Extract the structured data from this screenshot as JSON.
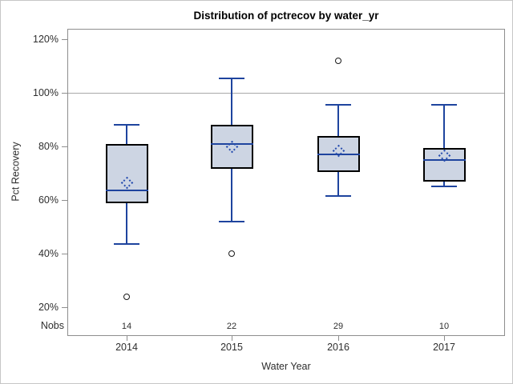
{
  "figure": {
    "title": "Distribution of pctrecov by water_yr",
    "y_axis": {
      "label": "Pct Recovery",
      "tick_labels": [
        "120%",
        "100%",
        "80%",
        "60%",
        "40%",
        "20%"
      ],
      "tick_values": [
        120,
        100,
        80,
        60,
        40,
        20
      ]
    },
    "x_axis": {
      "label": "Water Year",
      "categories": [
        "2014",
        "2015",
        "2016",
        "2017"
      ]
    },
    "nobs_row": {
      "header": "Nobs",
      "values": [
        "14",
        "22",
        "29",
        "10"
      ]
    }
  },
  "chart_data": {
    "type": "boxplot",
    "title": "Distribution of pctrecov by water_yr",
    "xlabel": "Water Year",
    "ylabel": "Pct Recovery",
    "categories": [
      "2014",
      "2015",
      "2016",
      "2017"
    ],
    "nobs": [
      14,
      22,
      29,
      10
    ],
    "y_ticks_pct": [
      20,
      40,
      60,
      80,
      100,
      120
    ],
    "ylim_pct": [
      9,
      124
    ],
    "reference_line_pct": 100,
    "grid": false,
    "legend": "none",
    "series": [
      {
        "category": "2014",
        "nobs": 14,
        "whisker_low": 43.5,
        "q1": 59,
        "median": 63.5,
        "q3": 81,
        "whisker_high": 88,
        "mean": 66.5,
        "outliers": [
          24
        ]
      },
      {
        "category": "2015",
        "nobs": 22,
        "whisker_low": 52,
        "q1": 71.5,
        "median": 81,
        "q3": 88,
        "whisker_high": 105.5,
        "mean": 79.8,
        "outliers": [
          40
        ]
      },
      {
        "category": "2016",
        "nobs": 29,
        "whisker_low": 61.5,
        "q1": 70.5,
        "median": 77,
        "q3": 84,
        "whisker_high": 95.5,
        "mean": 78.5,
        "outliers": [
          112
        ]
      },
      {
        "category": "2017",
        "nobs": 10,
        "whisker_low": 65,
        "q1": 67,
        "median": 75,
        "q3": 79.5,
        "whisker_high": 95.5,
        "mean": 76.5,
        "outliers": []
      }
    ]
  },
  "colors": {
    "box_fill": "#cdd5e3",
    "box_border": "#000000",
    "median_line": "#1e449e",
    "whisker": "#1e449e",
    "mean_marker": "#2a50b0",
    "outlier": "#1a1a1a",
    "reference_line": "#a8a8a8",
    "axis_frame": "#8e8e8e",
    "text": "#2e2e2e"
  }
}
